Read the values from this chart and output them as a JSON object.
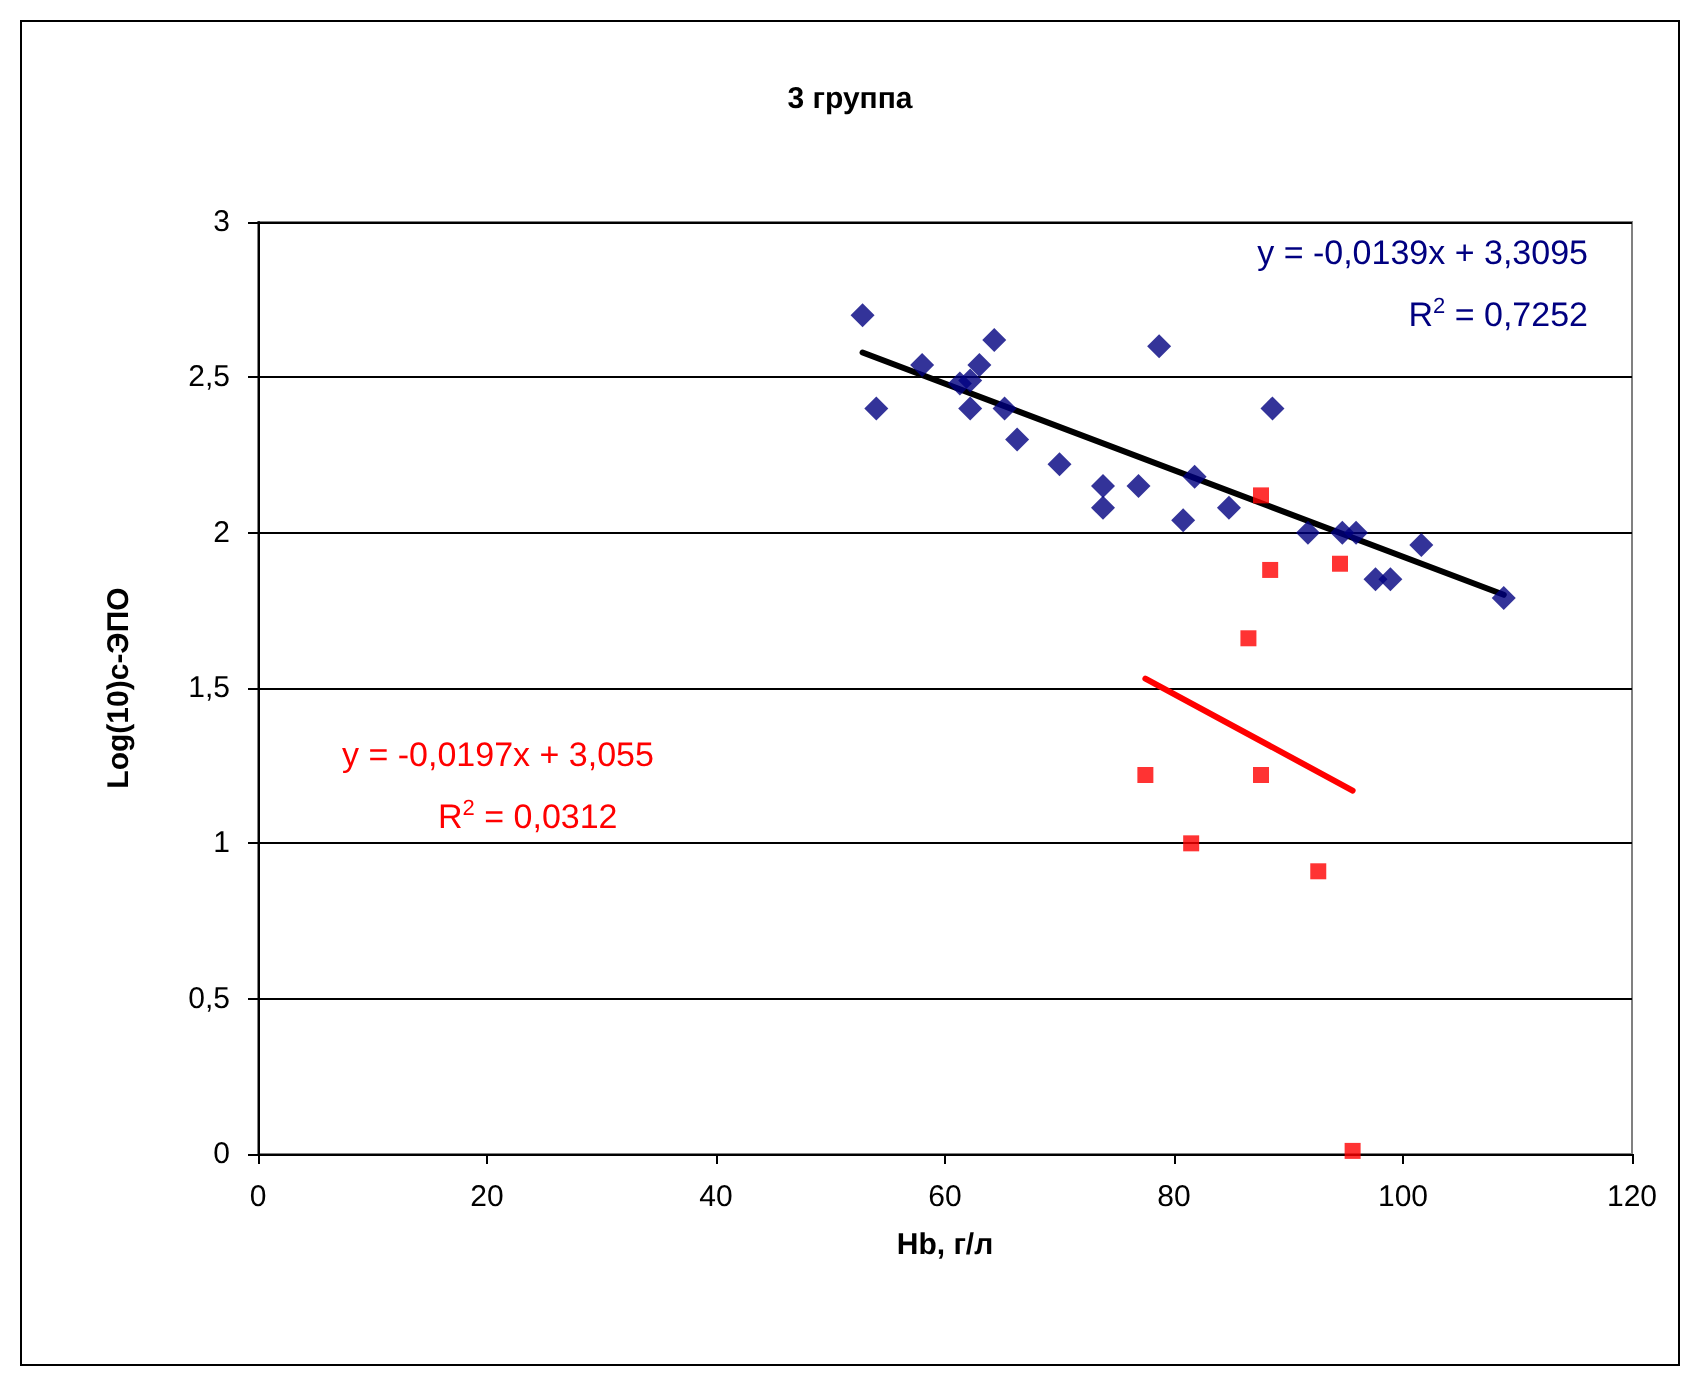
{
  "chart_data": {
    "type": "scatter",
    "title": "3 группа",
    "xlabel": "Hb, г/л",
    "ylabel": "Log(10)с-ЭПО",
    "xlim": [
      0,
      120
    ],
    "xticks": [
      0,
      20,
      40,
      60,
      80,
      100,
      120
    ],
    "ylim": [
      0,
      3
    ],
    "yticks": [
      0,
      {
        "value": 0.5,
        "label": "0,5"
      },
      1,
      {
        "value": 1.5,
        "label": "1,5"
      },
      2,
      {
        "value": 2.5,
        "label": "2,5"
      },
      3
    ],
    "grid": "y",
    "series": [
      {
        "marker": "diamond",
        "color": "#000080",
        "x": [
          52.8,
          54.0,
          58.0,
          61.3,
          62.2,
          62.2,
          63.0,
          64.3,
          65.2,
          66.3,
          70.0,
          73.8,
          73.8,
          76.9,
          78.7,
          80.8,
          81.8,
          84.8,
          88.6,
          91.7,
          94.7,
          95.9,
          97.6,
          98.9,
          101.6,
          108.8
        ],
        "values": [
          2.7,
          2.4,
          2.54,
          2.48,
          2.49,
          2.4,
          2.54,
          2.62,
          2.4,
          2.3,
          2.22,
          2.15,
          2.08,
          2.15,
          2.6,
          2.04,
          2.18,
          2.08,
          2.4,
          2.0,
          2.0,
          2.0,
          1.85,
          1.85,
          1.96,
          1.79
        ]
      },
      {
        "marker": "square",
        "color": "#ff0000",
        "x": [
          87.6,
          88.4,
          94.5,
          86.5,
          77.5,
          87.6,
          81.5,
          92.6,
          95.6
        ],
        "values": [
          2.12,
          1.88,
          1.9,
          1.66,
          1.22,
          1.22,
          1.0,
          0.91,
          0.01
        ]
      },
      {
        "type": "line",
        "marker": "none",
        "color": "#000000",
        "x": [
          52.8,
          108.8
        ],
        "values": [
          2.58,
          1.8
        ]
      },
      {
        "type": "line",
        "marker": "none",
        "color": "#ff0000",
        "x": [
          77.5,
          95.6
        ],
        "values": [
          1.53,
          1.17
        ]
      }
    ],
    "annotations": [
      "y = -0,0139x + 3,3095",
      "R$^{2}$ = 0,7252",
      "y = -0,0197x + 3,055",
      "R$^{2}$ = 0,0312"
    ]
  }
}
